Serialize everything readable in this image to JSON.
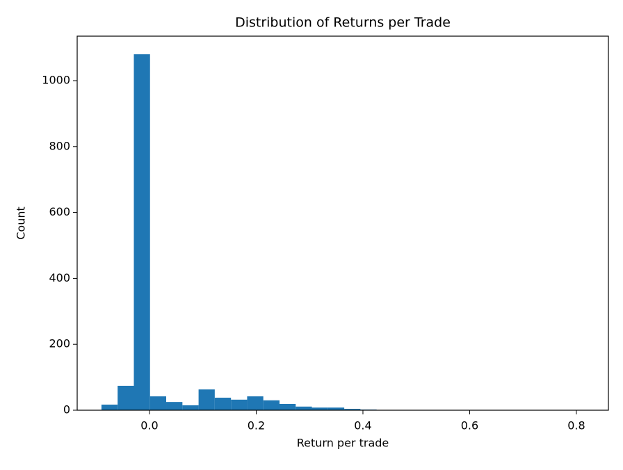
{
  "chart_data": {
    "type": "histogram",
    "title": "Distribution of Returns per Trade",
    "x_label": "Return per trade",
    "y_label": "Count",
    "color": "#1f77b4",
    "bins": [
      -0.09,
      -0.0597,
      -0.0293,
      0.001,
      0.0313,
      0.0617,
      0.092,
      0.1223,
      0.1527,
      0.183,
      0.2133,
      0.2437,
      0.274,
      0.3043,
      0.3347,
      0.365,
      0.3953,
      0.4257,
      0.456,
      0.4863,
      0.5167,
      0.547,
      0.5773,
      0.6077,
      0.638,
      0.6683,
      0.6987,
      0.729,
      0.7593,
      0.7897,
      0.82
    ],
    "counts": [
      17,
      74,
      1080,
      42,
      25,
      15,
      63,
      38,
      32,
      42,
      30,
      19,
      11,
      8,
      8,
      4,
      2,
      1,
      1,
      0,
      0,
      0,
      1,
      0,
      0,
      0,
      0,
      0,
      0,
      1
    ],
    "xlim": [
      -0.1355,
      0.86
    ],
    "ylim": [
      0,
      1135
    ],
    "xticks": [
      {
        "value": 0,
        "label": "0.0"
      },
      0.2,
      0.4,
      0.6,
      0.8
    ],
    "yticks": [
      0,
      200,
      400,
      600,
      800,
      1000
    ]
  }
}
